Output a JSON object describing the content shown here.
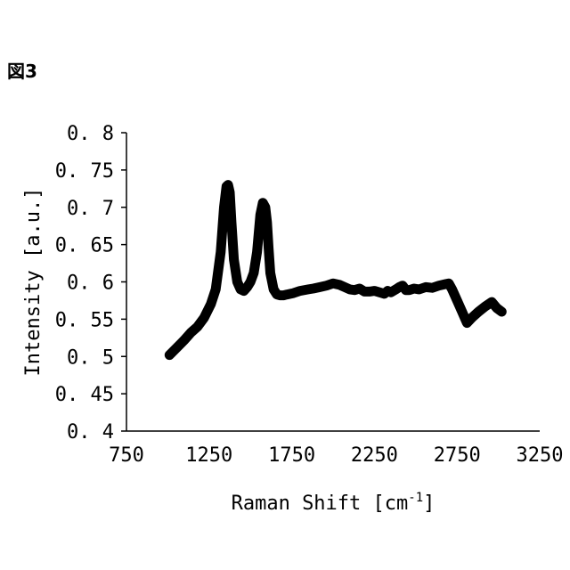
{
  "figure_label": "図3",
  "chart_data": {
    "type": "line",
    "xlabel": "Raman Shift [cm",
    "xlabel_sup": "-1",
    "xlabel_end": "]",
    "ylabel": "Intensity [a.u.]",
    "xlim": [
      750,
      3250
    ],
    "ylim": [
      0.4,
      0.8
    ],
    "x_ticks": [
      750,
      1250,
      1750,
      2250,
      2750,
      3250
    ],
    "y_ticks": [
      0.4,
      0.45,
      0.5,
      0.55,
      0.6,
      0.65,
      0.7,
      0.75,
      0.8
    ],
    "x_tick_labels": [
      "750",
      "1250",
      "1750",
      "2250",
      "2750",
      "3250"
    ],
    "y_tick_labels": [
      "0. 4",
      "0. 45",
      "0. 5",
      "0. 55",
      "0. 6",
      "0. 65",
      "0. 7",
      "0. 75",
      "0. 8"
    ],
    "grid": false,
    "line_color": "#000000",
    "series": [
      {
        "x": [
          1010,
          1060,
          1100,
          1140,
          1180,
          1220,
          1260,
          1290,
          1320,
          1340,
          1355,
          1365,
          1375,
          1385,
          1400,
          1420,
          1440,
          1460,
          1480,
          1500,
          1520,
          1540,
          1560,
          1575,
          1590,
          1600,
          1610,
          1620,
          1640,
          1660,
          1680,
          1700,
          1720,
          1760,
          1800,
          1850,
          1880,
          1920,
          1960,
          2000,
          2040,
          2070,
          2100,
          2130,
          2160,
          2190,
          2220,
          2250,
          2280,
          2310,
          2330,
          2350,
          2380,
          2400,
          2420,
          2440,
          2460,
          2490,
          2520,
          2560,
          2600,
          2640,
          2680,
          2700,
          2720,
          2750,
          2780,
          2810,
          2840,
          2880,
          2920,
          2960,
          2990,
          3020
        ],
        "y": [
          0.502,
          0.513,
          0.522,
          0.532,
          0.54,
          0.552,
          0.57,
          0.59,
          0.64,
          0.7,
          0.728,
          0.73,
          0.72,
          0.68,
          0.63,
          0.6,
          0.59,
          0.588,
          0.593,
          0.6,
          0.612,
          0.64,
          0.69,
          0.706,
          0.7,
          0.68,
          0.645,
          0.612,
          0.59,
          0.583,
          0.582,
          0.582,
          0.583,
          0.585,
          0.588,
          0.59,
          0.591,
          0.593,
          0.595,
          0.598,
          0.596,
          0.593,
          0.59,
          0.589,
          0.591,
          0.587,
          0.587,
          0.588,
          0.586,
          0.584,
          0.588,
          0.586,
          0.59,
          0.593,
          0.595,
          0.589,
          0.589,
          0.591,
          0.59,
          0.593,
          0.592,
          0.595,
          0.597,
          0.598,
          0.59,
          0.575,
          0.56,
          0.545,
          0.552,
          0.56,
          0.567,
          0.573,
          0.565,
          0.56
        ]
      }
    ]
  }
}
